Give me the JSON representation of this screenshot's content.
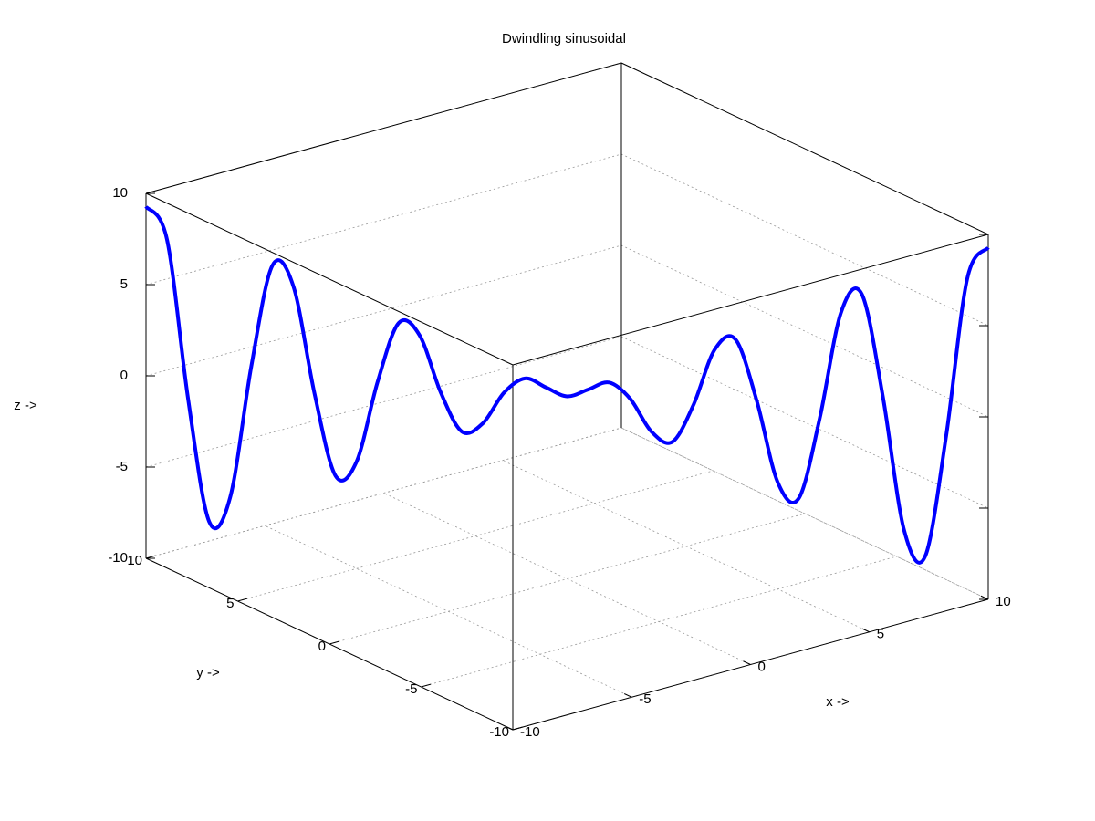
{
  "chart_data": {
    "type": "line3d",
    "title": "Dwindling sinusoidal",
    "xlabel": "x ->",
    "ylabel": "y ->",
    "zlabel": "z ->",
    "xlim": [
      -10,
      10
    ],
    "ylim": [
      -10,
      10
    ],
    "zlim": [
      -10,
      10
    ],
    "xticks": [
      -10,
      -5,
      0,
      5,
      10
    ],
    "yticks": [
      -10,
      -5,
      0,
      5,
      10
    ],
    "zticks": [
      -10,
      -5,
      0,
      5,
      10
    ],
    "grid": true,
    "series": [
      {
        "color": "#0000ff",
        "x": [
          -10,
          -9.5,
          -9,
          -8.5,
          -8,
          -7.5,
          -7,
          -6.5,
          -6,
          -5.5,
          -5,
          -4.5,
          -4,
          -3.5,
          -3,
          -2.5,
          -2,
          -1.5,
          -1,
          -0.5,
          0,
          0.5,
          1,
          1.5,
          2,
          2.5,
          3,
          3.5,
          4,
          4.5,
          5,
          5.5,
          6,
          6.5,
          7,
          7.5,
          8,
          8.5,
          9,
          9.5,
          10
        ],
        "y": [
          10,
          9.5,
          9,
          8.5,
          8,
          7.5,
          7,
          6.5,
          6,
          5.5,
          5,
          4.5,
          4,
          3.5,
          3,
          2.5,
          2,
          1.5,
          1,
          0.5,
          0,
          -0.5,
          -1,
          -1.5,
          -2,
          -2.5,
          -3,
          -3.5,
          -4,
          -4.5,
          -5,
          -5.5,
          -6,
          -6.5,
          -7,
          -7.5,
          -8,
          -8.5,
          -9,
          -9.5,
          -10
        ],
        "z": [
          9.28,
          7.51,
          -1.16,
          -7.82,
          -6.42,
          0.8,
          6.38,
          5.3,
          -0.51,
          -4.97,
          -4.14,
          0.29,
          3.57,
          2.94,
          -0.13,
          -2.21,
          -1.7,
          0.03,
          0.87,
          0.43,
          0,
          0.43,
          0.87,
          0.03,
          -1.7,
          -2.21,
          -0.13,
          2.94,
          3.57,
          0.29,
          -4.14,
          -4.97,
          -0.51,
          5.3,
          6.38,
          0.8,
          -6.42,
          -7.82,
          -1.16,
          7.51,
          9.28
        ]
      }
    ]
  }
}
